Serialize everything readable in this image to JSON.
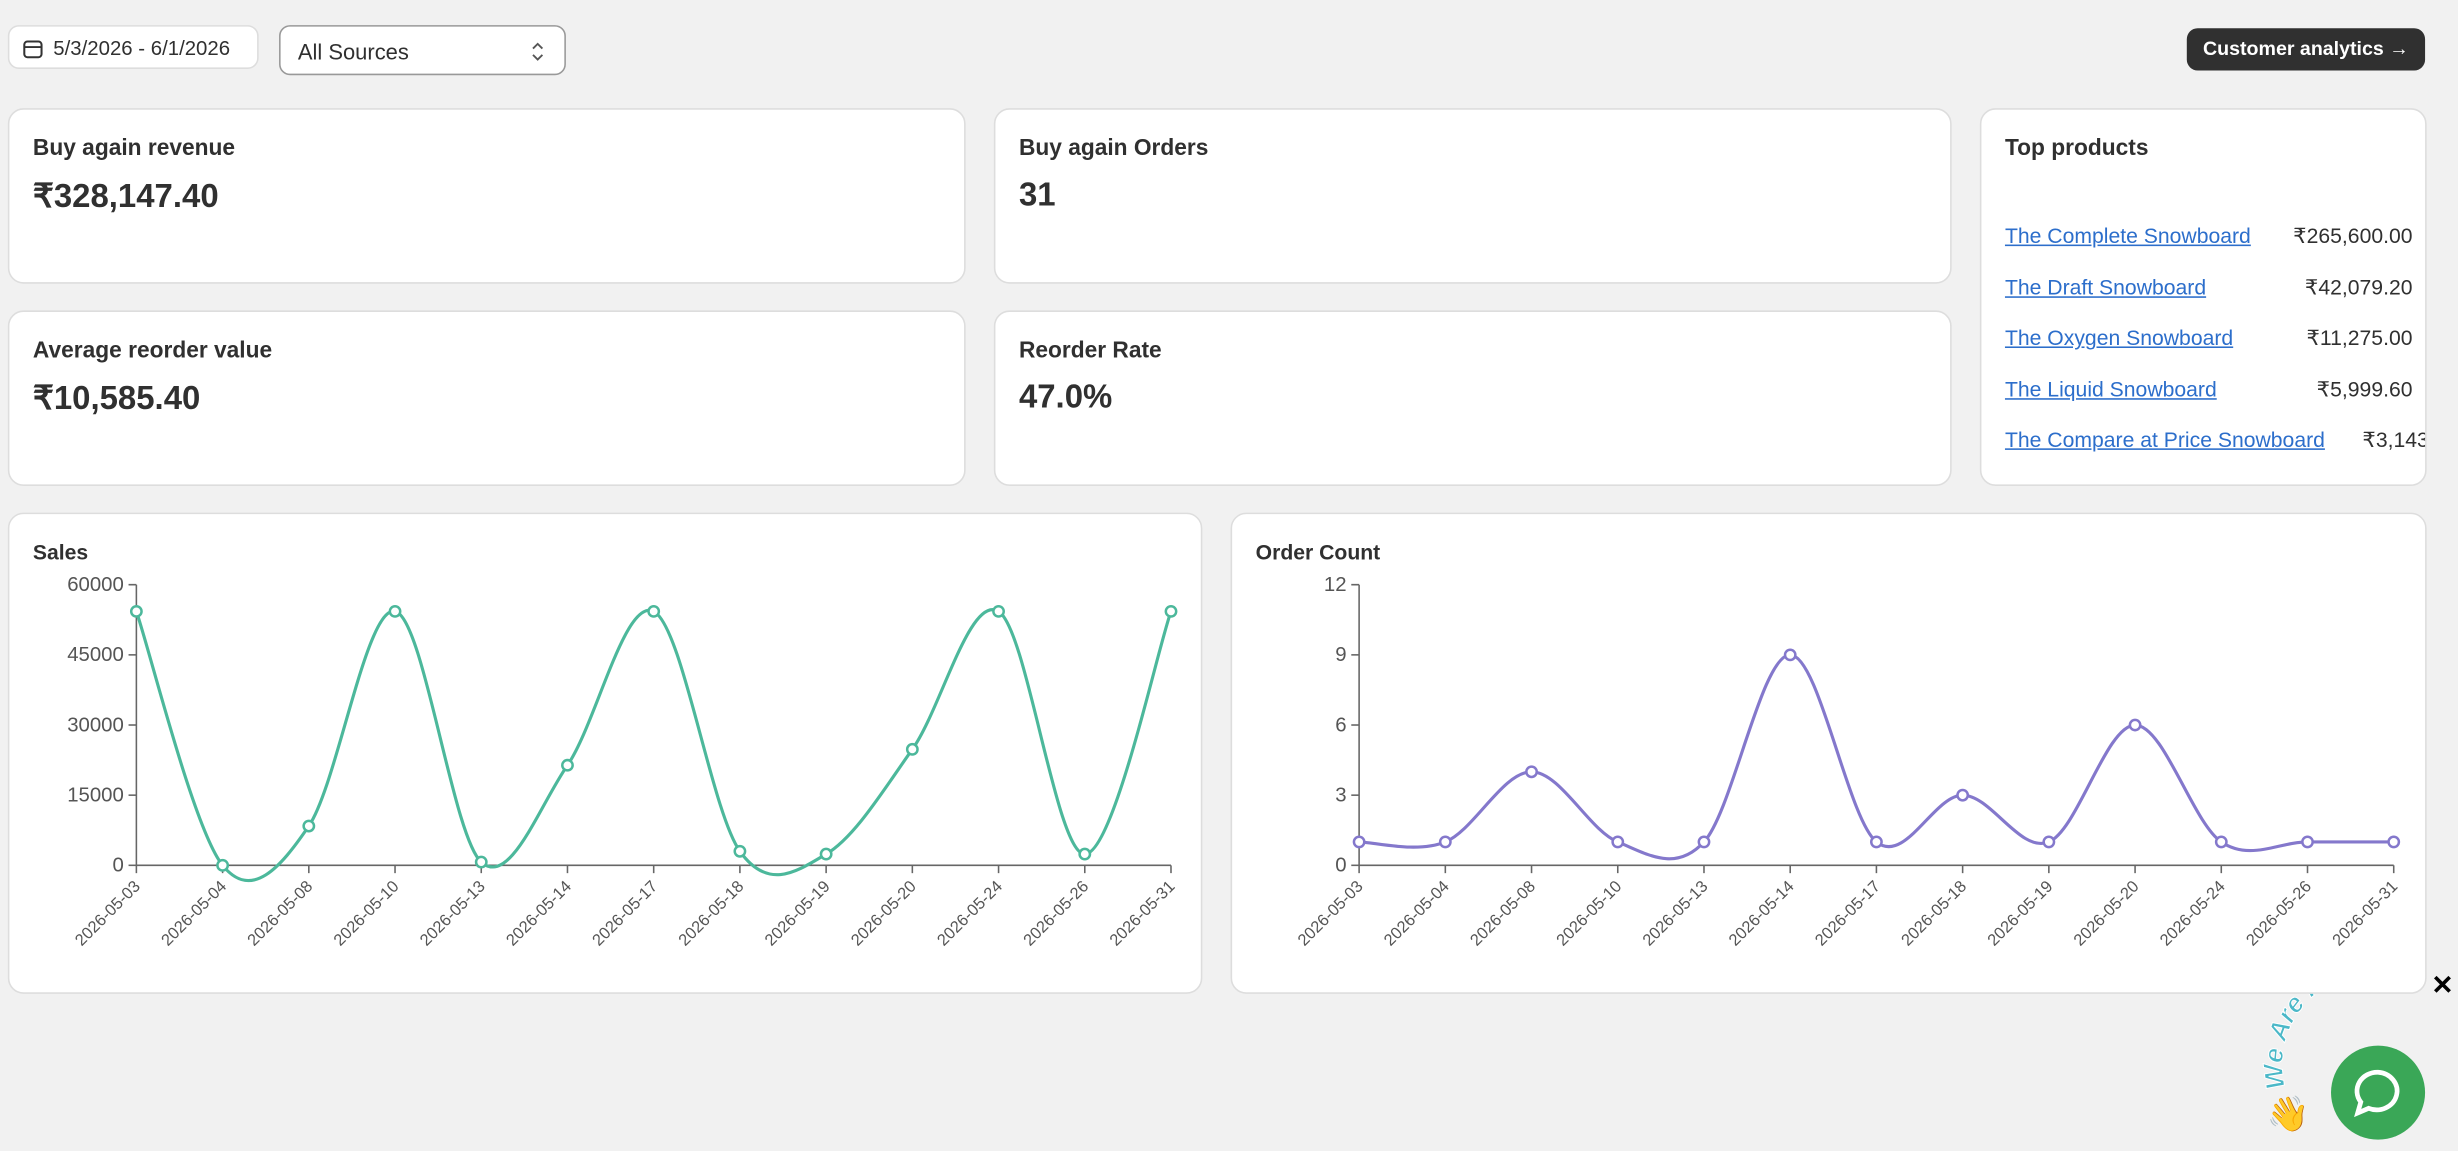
{
  "toolbar": {
    "date_range": "5/3/2026 - 6/1/2026",
    "source_filter": "All Sources",
    "analytics_button": "Customer analytics →"
  },
  "metrics": [
    {
      "label": "Buy again revenue",
      "value": "₹328,147.40"
    },
    {
      "label": "Buy again Orders",
      "value": "31"
    },
    {
      "label": "Average reorder value",
      "value": "₹10,585.40"
    },
    {
      "label": "Reorder Rate",
      "value": "47.0%"
    }
  ],
  "top_products": {
    "title": "Top products",
    "items": [
      {
        "name": "The Complete Snowboard",
        "value": "₹265,600.00"
      },
      {
        "name": "The Draft Snowboard",
        "value": "₹42,079.20"
      },
      {
        "name": "The Oxygen Snowboard",
        "value": "₹11,275.00"
      },
      {
        "name": "The Liquid Snowboard",
        "value": "₹5,999.60"
      },
      {
        "name": "The Compare at Price Snowboard",
        "value": "₹3,143"
      }
    ]
  },
  "chart_data": [
    {
      "type": "line",
      "title": "Sales",
      "color": "#4cb89b",
      "categories": [
        "2026-05-03",
        "2026-05-04",
        "2026-05-08",
        "2026-05-10",
        "2026-05-13",
        "2026-05-14",
        "2026-05-17",
        "2026-05-18",
        "2026-05-19",
        "2026-05-20",
        "2026-05-24",
        "2026-05-26",
        "2026-05-31"
      ],
      "values": [
        54300,
        0,
        8400,
        54300,
        700,
        21400,
        54300,
        3000,
        2400,
        24800,
        54300,
        2400,
        54300
      ],
      "ylim": [
        0,
        60000
      ],
      "yticks": [
        0,
        15000,
        30000,
        45000,
        60000
      ]
    },
    {
      "type": "line",
      "title": "Order Count",
      "color": "#8478cc",
      "categories": [
        "2026-05-03",
        "2026-05-04",
        "2026-05-08",
        "2026-05-10",
        "2026-05-13",
        "2026-05-14",
        "2026-05-17",
        "2026-05-18",
        "2026-05-19",
        "2026-05-20",
        "2026-05-24",
        "2026-05-26",
        "2026-05-31"
      ],
      "values": [
        1,
        1,
        4,
        1,
        1,
        9,
        1,
        3,
        1,
        6,
        1,
        1,
        1
      ],
      "ylim": [
        0,
        12
      ],
      "yticks": [
        0,
        3,
        6,
        9,
        12
      ]
    }
  ],
  "chat_widget": {
    "badge": "We Are Here!"
  }
}
